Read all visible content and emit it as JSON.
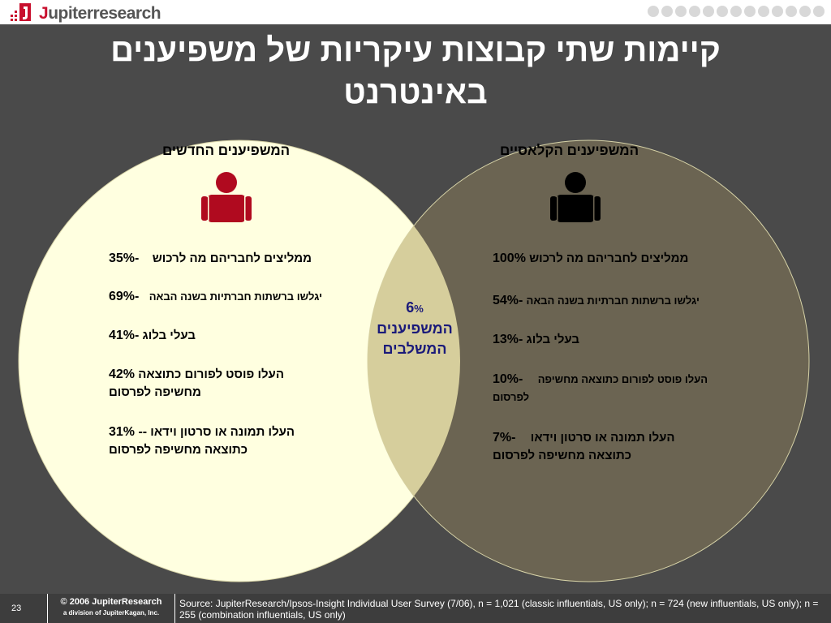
{
  "header": {
    "logo_text_red": "J",
    "logo_text_rest": "upiterresearch"
  },
  "title": {
    "line1": "קיימות שתי קבוצות עיקריות של משפיענים",
    "line2": "באינטרנט"
  },
  "venn": {
    "left_circle_color": "#ffffe0",
    "right_circle_color": "#6b6452",
    "overlap_color": "#d6ce9c",
    "left": {
      "heading": "המשפיענים החדשים",
      "icon": "person-icon",
      "icon_color": "#b00a1f",
      "stats": [
        {
          "num": "35%-",
          "label": "ממליצים לחבריהם מה לרכוש"
        },
        {
          "num": "69%-",
          "label": "יגלשו ברשתות חברתיות בשנה הבאה"
        },
        {
          "num": "41%-",
          "label": "בעלי בלוג"
        },
        {
          "num": "42%",
          "label": "העלו פוסט לפורום כתוצאה",
          "label2": "מחשיפה לפרסום"
        },
        {
          "num": "31% --",
          "label": "העלו תמונה או סרטון וידאו",
          "label2": "כתוצאה מחשיפה לפרסום"
        }
      ]
    },
    "right": {
      "heading": "המשפיענים הקלאסיים",
      "icon": "person-icon",
      "icon_color": "#000000",
      "stats": [
        {
          "num": "100%",
          "label": "ממליצים לחבריהם מה לרכוש"
        },
        {
          "num": "54%-",
          "label": "יגלשו ברשתות חברתיות בשנה הבאה"
        },
        {
          "num": "13%-",
          "label": "בעלי בלוג"
        },
        {
          "num": "10%-",
          "label": "העלו פוסט לפורום כתוצאה מחשיפה",
          "label2": "לפרסום"
        },
        {
          "num": "7%-",
          "label": "העלו תמונה או סרטון וידאו",
          "label2": "כתוצאה מחשיפה לפרסום"
        }
      ]
    },
    "overlap": {
      "num": "6",
      "pct": "%",
      "line1": "המשפיענים",
      "line2": "המשלבים"
    }
  },
  "footer": {
    "page_number": "23",
    "copyright": "© 2006 JupiterResearch",
    "division": "a division of JupiterKagan, Inc.",
    "source": "Source: JupiterResearch/Ipsos-Insight Individual User Survey (7/06), n = 1,021 (classic influentials, US only); n = 724 (new influentials, US only); n = 255 (combination influentials, US only)"
  }
}
